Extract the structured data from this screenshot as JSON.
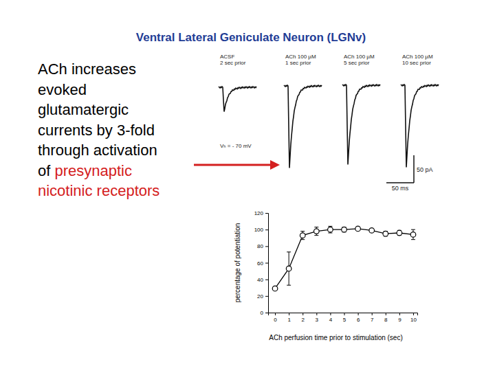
{
  "slide": {
    "title": "Ventral Lateral Geniculate Neuron (LGNv)",
    "title_color": "#1f3d96",
    "body": [
      [
        {
          "text": "ACh increases",
          "color": "#000000"
        }
      ],
      [
        {
          "text": "evoked",
          "color": "#000000"
        }
      ],
      [
        {
          "text": "glutamatergic",
          "color": "#000000"
        }
      ],
      [
        {
          "text": "currents by 3-fold",
          "color": "#000000"
        }
      ],
      [
        {
          "text": "through activation",
          "color": "#000000"
        }
      ],
      [
        {
          "text": "of ",
          "color": "#000000"
        },
        {
          "text": "presynaptic",
          "color": "#d42020"
        }
      ],
      [
        {
          "text": "nicotinic receptors",
          "color": "#d42020"
        }
      ]
    ]
  },
  "traces": {
    "labels": [
      [
        "ACSF",
        "2 sec prior"
      ],
      [
        "ACh 100 µM",
        "1 sec prior"
      ],
      [
        "ACh 100 µM",
        "5 sec prior"
      ],
      [
        "ACh 100 µM",
        "10 sec prior"
      ]
    ],
    "peaks": [
      45,
      150,
      145,
      150
    ],
    "holding": "Vₕ = - 70 mV",
    "scale_bar": {
      "current": {
        "value": 50,
        "label": "50 pA"
      },
      "time": {
        "value": 50,
        "label": "50 ms"
      }
    }
  },
  "chart_data": {
    "type": "line",
    "x_label": "ACh perfusion time prior to stimulation (sec)",
    "y_label": "percentage of potentiation",
    "x": [
      0,
      1,
      2,
      3,
      4,
      5,
      6,
      7,
      8,
      9,
      10
    ],
    "values": [
      29,
      53,
      93,
      98,
      100,
      100,
      101,
      99,
      95,
      96,
      94
    ],
    "errors": [
      2,
      20,
      5,
      5,
      4,
      3,
      2,
      2,
      3,
      3,
      6
    ],
    "color": "#000000",
    "marker": "circle",
    "xlim": [
      -0.5,
      10.3
    ],
    "ylim": [
      0,
      120
    ],
    "xticks": [
      0,
      1,
      2,
      3,
      4,
      5,
      6,
      7,
      8,
      9,
      10
    ],
    "yticks": [
      0,
      20,
      40,
      60,
      80,
      100,
      120
    ]
  }
}
